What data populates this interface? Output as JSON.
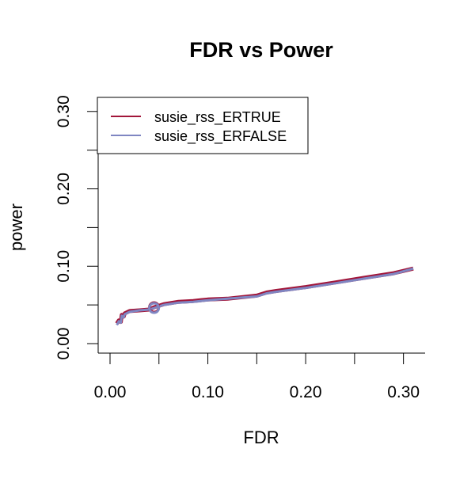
{
  "chart_data": {
    "type": "line",
    "title": "FDR vs Power",
    "xlabel": "FDR",
    "ylabel": "power",
    "xlim": [
      0.0,
      0.31
    ],
    "ylim": [
      0.0,
      0.31
    ],
    "x_ticks": [
      "0.00",
      "0.10",
      "0.20",
      "0.30"
    ],
    "x_tick_values": [
      0.0,
      0.1,
      0.2,
      0.3
    ],
    "x_minor_ticks": [
      0.05,
      0.15,
      0.25
    ],
    "y_ticks": [
      "0.00",
      "0.10",
      "0.20",
      "0.30"
    ],
    "y_tick_values": [
      0.0,
      0.1,
      0.2,
      0.3
    ],
    "y_minor_ticks": [
      0.05,
      0.15,
      0.25
    ],
    "grid": false,
    "legend_position": "top-left",
    "series": [
      {
        "name": "susie_rss_ERTRUE",
        "color": "#a2163a",
        "x": [
          0.007,
          0.009,
          0.011,
          0.012,
          0.014,
          0.015,
          0.02,
          0.03,
          0.04,
          0.045,
          0.055,
          0.07,
          0.085,
          0.1,
          0.12,
          0.15,
          0.16,
          0.17,
          0.2,
          0.23,
          0.26,
          0.29,
          0.31
        ],
        "y": [
          0.026,
          0.03,
          0.028,
          0.037,
          0.035,
          0.039,
          0.042,
          0.043,
          0.044,
          0.047,
          0.051,
          0.054,
          0.055,
          0.057,
          0.058,
          0.062,
          0.066,
          0.068,
          0.073,
          0.079,
          0.085,
          0.091,
          0.097
        ]
      },
      {
        "name": "susie_rss_ERFALSE",
        "color": "#7f86c2",
        "x": [
          0.007,
          0.009,
          0.011,
          0.012,
          0.014,
          0.015,
          0.02,
          0.03,
          0.04,
          0.045,
          0.055,
          0.07,
          0.085,
          0.1,
          0.12,
          0.15,
          0.16,
          0.17,
          0.2,
          0.23,
          0.26,
          0.29,
          0.31
        ],
        "y": [
          0.024,
          0.029,
          0.027,
          0.036,
          0.034,
          0.038,
          0.041,
          0.043,
          0.044,
          0.046,
          0.05,
          0.053,
          0.054,
          0.056,
          0.058,
          0.061,
          0.065,
          0.067,
          0.072,
          0.078,
          0.084,
          0.09,
          0.097
        ]
      }
    ],
    "markers": [
      {
        "series": "susie_rss_ERTRUE",
        "x": 0.045,
        "y": 0.047
      },
      {
        "series": "susie_rss_ERFALSE",
        "x": 0.045,
        "y": 0.046
      }
    ]
  }
}
